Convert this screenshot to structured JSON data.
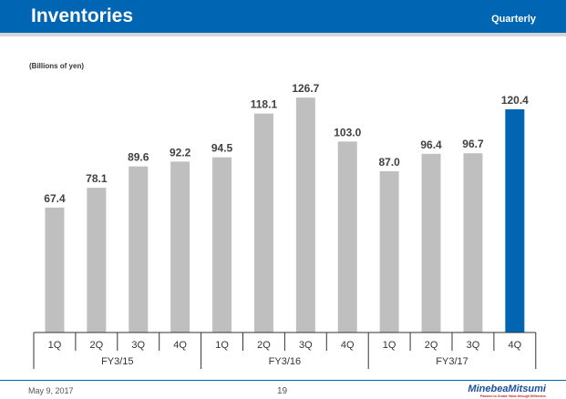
{
  "header": {
    "title": "Inventories",
    "subtitle": "Quarterly"
  },
  "footer": {
    "date": "May 9, 2017",
    "page": "19",
    "logo": "MinebeaMitsumi",
    "tagline": "Passion to Create Value through Difference"
  },
  "chart_data": {
    "type": "bar",
    "ylabel": "(Billions of yen)",
    "quarters": [
      "1Q",
      "2Q",
      "3Q",
      "4Q",
      "1Q",
      "2Q",
      "3Q",
      "4Q",
      "1Q",
      "2Q",
      "3Q",
      "4Q"
    ],
    "groups": [
      "FY3/15",
      "FY3/16",
      "FY3/17"
    ],
    "values": [
      67.4,
      78.1,
      89.6,
      92.2,
      94.5,
      118.1,
      126.7,
      103.0,
      87.0,
      96.4,
      96.7,
      120.4
    ],
    "labels": [
      "67.4",
      "78.1",
      "89.6",
      "92.2",
      "94.5",
      "118.1",
      "126.7",
      "103.0",
      "87.0",
      "96.4",
      "96.7",
      "120.4"
    ],
    "highlight_index": 11,
    "colors": {
      "bar": "#bfbfbf",
      "highlight": "#0066b3"
    },
    "ylim": [
      0,
      130
    ]
  }
}
